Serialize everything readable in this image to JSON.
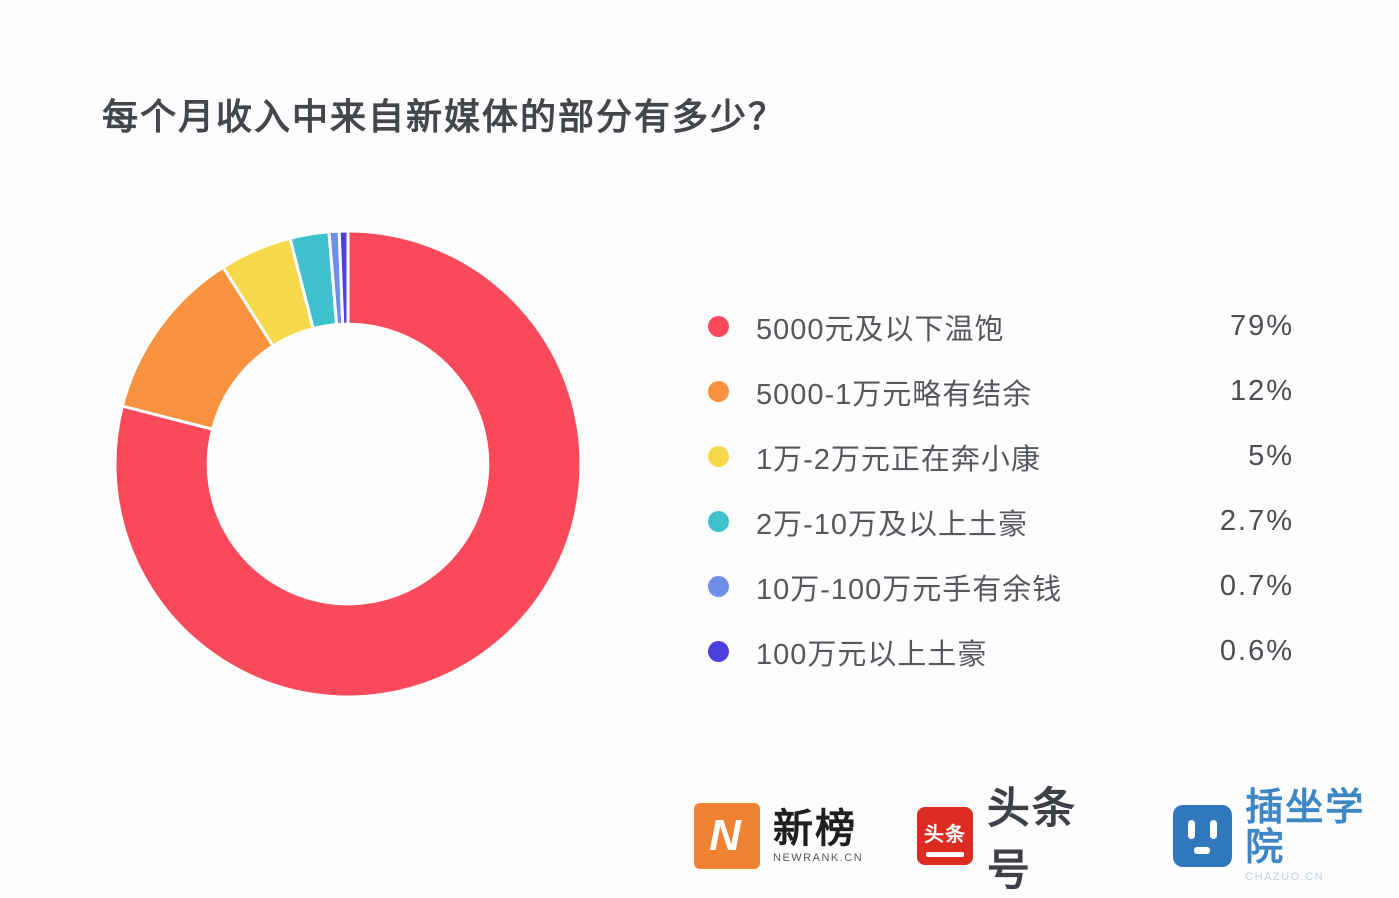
{
  "title": "每个月收入中来自新媒体的部分有多少？",
  "chart_data": {
    "type": "pie",
    "donut": true,
    "title": "每个月收入中来自新媒体的部分有多少？",
    "start_angle_deg": 0,
    "direction": "clockwise",
    "categories": [
      "5000元及以下温饱",
      "5000-1万元略有结余",
      "1万-2万元正在奔小康",
      "2万-10万及以上土豪",
      "10万-100万元手有余钱",
      "100万元以上土豪"
    ],
    "values": [
      79,
      12,
      5,
      2.7,
      0.7,
      0.6
    ],
    "labels": [
      "79%",
      "12%",
      "5%",
      "2.7%",
      "0.7%",
      "0.6%"
    ],
    "colors": [
      "#f94a5c",
      "#f8923e",
      "#f8d84b",
      "#3fc0cd",
      "#6e8eea",
      "#4c3fdb"
    ],
    "legend_position": "right",
    "inner_radius_ratio": 0.6,
    "slice_gap_color": "#ffffff"
  },
  "footer": {
    "newrank": {
      "icon_letter": "N",
      "name": "新榜",
      "sub": "NEWRANK.CN"
    },
    "toutiao": {
      "icon_text": "头条",
      "name": "头条号"
    },
    "chazuo": {
      "name": "插坐学院",
      "sub": "CHAZUO.CN"
    }
  }
}
